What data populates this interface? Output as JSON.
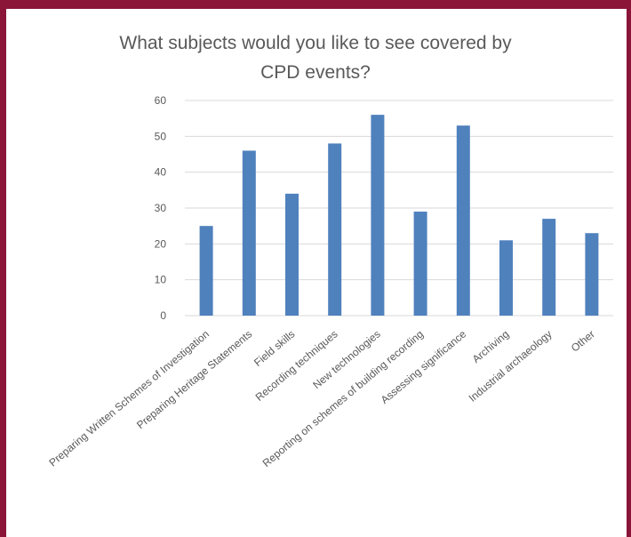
{
  "colors": {
    "frame": "#8a1538",
    "bar": "#4f81bd",
    "grid": "#d9d9d9",
    "text": "#595959"
  },
  "chart_data": {
    "type": "bar",
    "title_lines": [
      "What subjects would you like to see covered by",
      "CPD events?"
    ],
    "categories": [
      "Preparing Written Schemes of Investigation",
      "Preparing Heritage Statements",
      "Field skills",
      "Recording techniques",
      "New technologies",
      "Reporting on schemes of building recording",
      "Assessing significance",
      "Archiving",
      "Industrial archaeology",
      "Other"
    ],
    "values": [
      25,
      46,
      34,
      48,
      56,
      29,
      53,
      21,
      27,
      23
    ],
    "ylim": [
      0,
      60
    ],
    "yticks": [
      0,
      10,
      20,
      30,
      40,
      50,
      60
    ],
    "grid": true,
    "legend": false,
    "xlabel": "",
    "ylabel": ""
  }
}
